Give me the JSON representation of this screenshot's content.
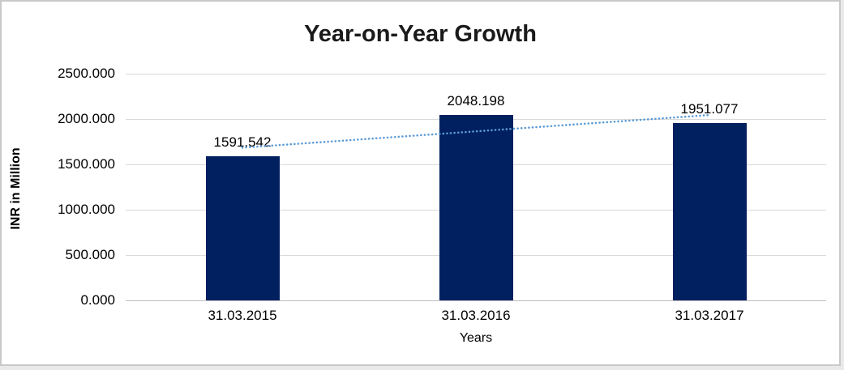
{
  "chart_data": {
    "type": "bar",
    "title": "Year-on-Year Growth",
    "categories": [
      "31.03.2015",
      "31.03.2016",
      "31.03.2017"
    ],
    "values": [
      1591.542,
      2048.198,
      1951.077
    ],
    "data_labels": [
      "1591.542",
      "2048.198",
      "1951.077"
    ],
    "xlabel": "Years",
    "ylabel": "INR in Million",
    "ylim": [
      0,
      2500
    ],
    "ytick_step": 500,
    "ytick_labels": [
      "2500.000",
      "2000.000",
      "1500.000",
      "1000.000",
      "500.000",
      "0.000"
    ],
    "grid": true,
    "legend": "none",
    "trendline": {
      "type": "linear",
      "style": "dotted"
    },
    "colors": {
      "bar": "#002060",
      "trendline": "#5b9bd5",
      "gridline": "#d9d9d9",
      "axis_line": "#bfbfbf",
      "title_text": "#1a1a1a",
      "label_text": "#000000",
      "card_border": "#c9c9c9",
      "background": "#ffffff"
    }
  }
}
